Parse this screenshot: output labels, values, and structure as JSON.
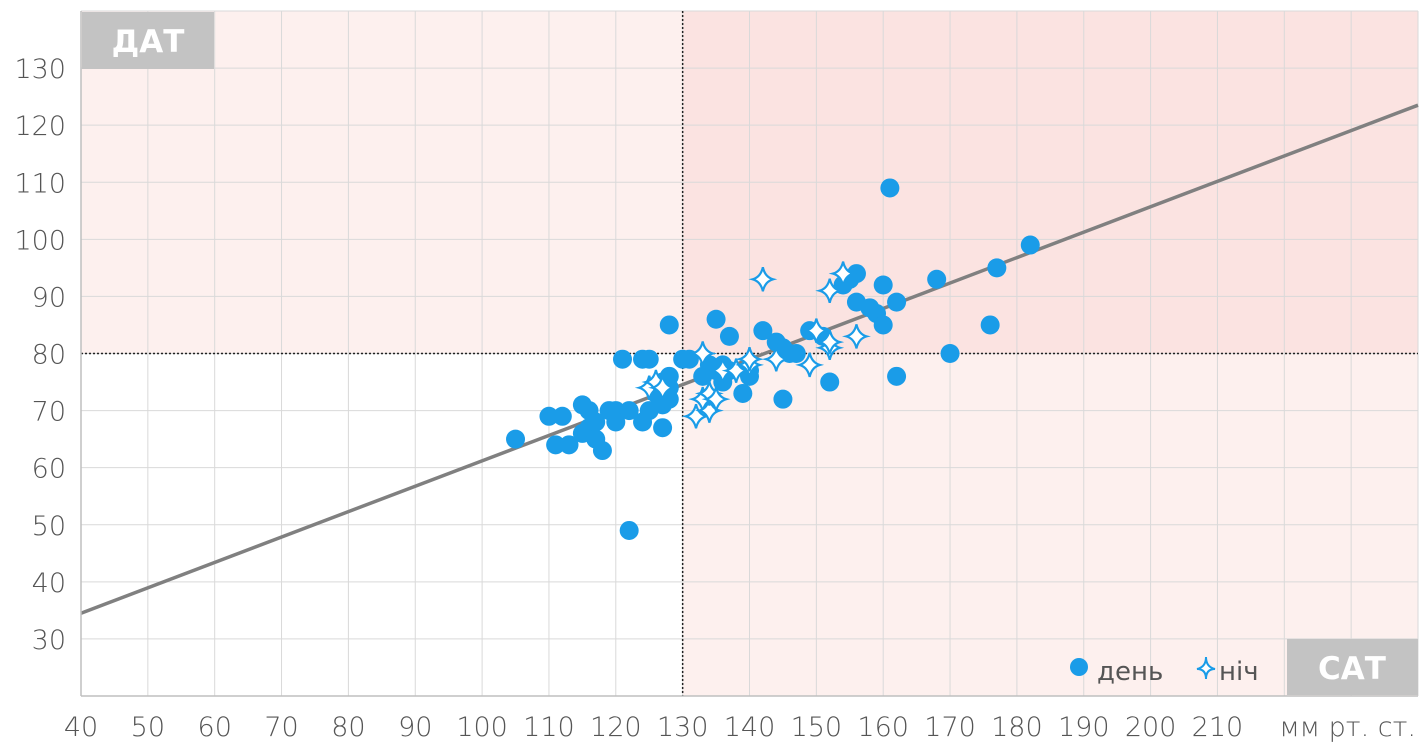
{
  "chart_data": {
    "type": "scatter",
    "x_axis": {
      "ticks": [
        "40",
        "50",
        "60",
        "70",
        "80",
        "90",
        "100",
        "110",
        "120",
        "130",
        "140",
        "150",
        "160",
        "170",
        "180",
        "190",
        "200",
        "210"
      ],
      "unit_label": "мм рт. ст.",
      "tag": "САТ",
      "range": [
        40,
        240
      ]
    },
    "y_axis": {
      "ticks": [
        "30",
        "40",
        "50",
        "60",
        "70",
        "80",
        "90",
        "100",
        "110",
        "120",
        "130"
      ],
      "tag": "ДАТ",
      "range": [
        20,
        140
      ]
    },
    "grid": true,
    "thresholds": {
      "x": 130,
      "y": 80
    },
    "zones": [
      {
        "x": [
          40,
          130
        ],
        "y": [
          80,
          140
        ],
        "color": "#fdf0ee"
      },
      {
        "x": [
          130,
          240
        ],
        "y": [
          80,
          140
        ],
        "color": "#fbe3e1"
      },
      {
        "x": [
          130,
          240
        ],
        "y": [
          20,
          80
        ],
        "color": "#fdf0ee"
      }
    ],
    "trend_line": {
      "from": [
        40,
        34.5
      ],
      "to": [
        240,
        123.5
      ],
      "color": "#808080"
    },
    "legend_position": "bottom-right",
    "series": [
      {
        "name": "день",
        "marker": "circle",
        "color": "#1a9ce8",
        "points": [
          [
            105,
            65
          ],
          [
            110,
            69
          ],
          [
            111,
            64
          ],
          [
            112,
            69
          ],
          [
            113,
            64
          ],
          [
            115,
            71
          ],
          [
            115,
            66
          ],
          [
            116,
            70
          ],
          [
            116,
            67
          ],
          [
            117,
            65
          ],
          [
            117,
            68
          ],
          [
            118,
            63
          ],
          [
            119,
            70
          ],
          [
            120,
            70
          ],
          [
            120,
            68
          ],
          [
            121,
            79
          ],
          [
            122,
            70
          ],
          [
            122,
            49
          ],
          [
            124,
            79
          ],
          [
            124,
            68
          ],
          [
            125,
            79
          ],
          [
            125,
            70
          ],
          [
            126,
            73
          ],
          [
            127,
            75
          ],
          [
            127,
            71
          ],
          [
            127,
            67
          ],
          [
            128,
            85
          ],
          [
            128,
            76
          ],
          [
            128,
            74
          ],
          [
            128,
            72
          ],
          [
            130,
            79
          ],
          [
            131,
            79
          ],
          [
            133,
            76
          ],
          [
            134,
            78
          ],
          [
            135,
            86
          ],
          [
            135,
            77
          ],
          [
            136,
            75
          ],
          [
            136,
            78
          ],
          [
            137,
            83
          ],
          [
            137,
            77
          ],
          [
            139,
            73
          ],
          [
            140,
            77
          ],
          [
            140,
            76
          ],
          [
            142,
            84
          ],
          [
            144,
            82
          ],
          [
            145,
            81
          ],
          [
            145,
            72
          ],
          [
            146,
            80
          ],
          [
            147,
            80
          ],
          [
            149,
            84
          ],
          [
            151,
            83
          ],
          [
            152,
            75
          ],
          [
            154,
            92
          ],
          [
            155,
            93
          ],
          [
            156,
            94
          ],
          [
            156,
            89
          ],
          [
            158,
            88
          ],
          [
            159,
            87
          ],
          [
            160,
            92
          ],
          [
            160,
            85
          ],
          [
            161,
            109
          ],
          [
            162,
            89
          ],
          [
            162,
            76
          ],
          [
            168,
            93
          ],
          [
            170,
            80
          ],
          [
            176,
            85
          ],
          [
            177,
            95
          ],
          [
            182,
            99
          ]
        ]
      },
      {
        "name": "ніч",
        "marker": "star4",
        "color": "#1a9ce8",
        "points": [
          [
            125,
            74
          ],
          [
            126,
            75
          ],
          [
            127,
            74
          ],
          [
            132,
            69
          ],
          [
            133,
            72
          ],
          [
            133,
            80
          ],
          [
            134,
            70
          ],
          [
            134,
            73
          ],
          [
            135,
            72
          ],
          [
            136,
            77
          ],
          [
            138,
            77
          ],
          [
            140,
            78
          ],
          [
            140,
            79
          ],
          [
            142,
            93
          ],
          [
            144,
            79
          ],
          [
            149,
            78
          ],
          [
            150,
            84
          ],
          [
            152,
            81
          ],
          [
            152,
            82
          ],
          [
            152,
            91
          ],
          [
            154,
            94
          ],
          [
            156,
            83
          ]
        ]
      }
    ]
  }
}
